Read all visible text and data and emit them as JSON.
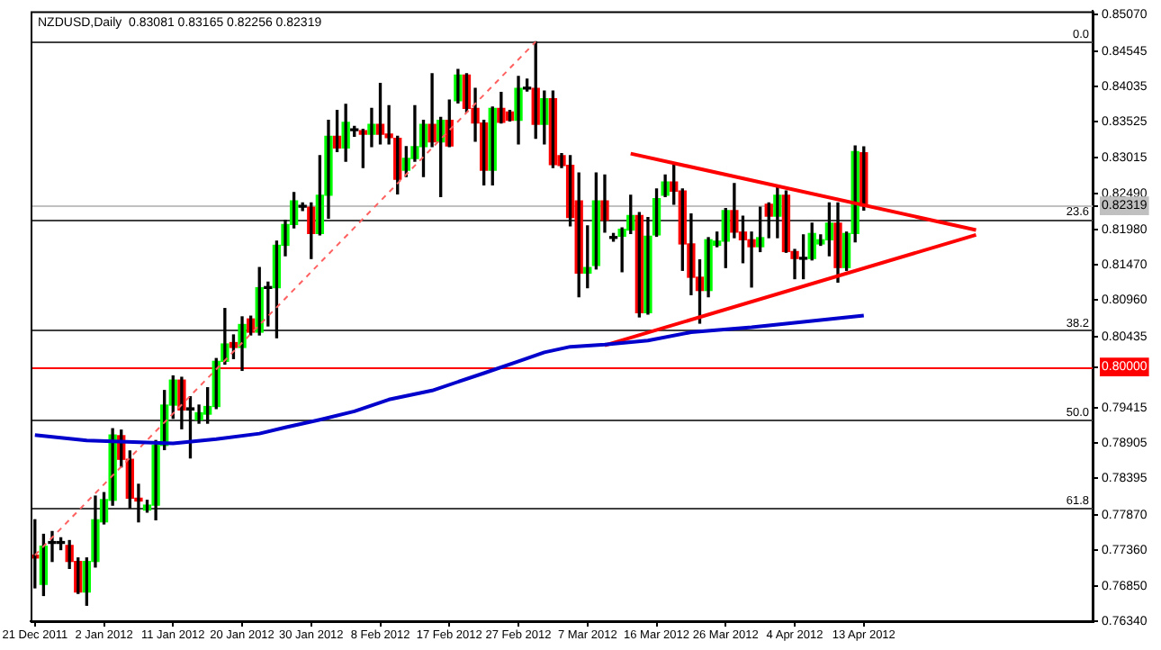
{
  "chart_data": {
    "type": "candlestick",
    "title": "NZDUSD,Daily  0.83081 0.83165 0.82256 0.82319",
    "categories": [
      "21 Dec 2011",
      null,
      null,
      null,
      null,
      null,
      null,
      null,
      "2 Jan 2012",
      null,
      null,
      null,
      null,
      null,
      null,
      null,
      "11 Jan 2012",
      null,
      null,
      null,
      null,
      null,
      null,
      null,
      "20 Jan 2012",
      null,
      null,
      null,
      null,
      null,
      null,
      null,
      "30 Jan 2012",
      null,
      null,
      null,
      null,
      null,
      null,
      null,
      "8 Feb 2012",
      null,
      null,
      null,
      null,
      null,
      null,
      null,
      "17 Feb 2012",
      null,
      null,
      null,
      null,
      null,
      null,
      null,
      "27 Feb 2012",
      null,
      null,
      null,
      null,
      null,
      null,
      null,
      "7 Mar 2012",
      null,
      null,
      null,
      null,
      null,
      null,
      null,
      "16 Mar 2012",
      null,
      null,
      null,
      null,
      null,
      null,
      null,
      "26 Mar 2012",
      null,
      null,
      null,
      null,
      null,
      null,
      null,
      "4 Apr 2012",
      null,
      null,
      null,
      null,
      null,
      null,
      null,
      "13 Apr 2012",
      null,
      null,
      null,
      null,
      null,
      null,
      null,
      null,
      null,
      null,
      null,
      null,
      null,
      null,
      null,
      null,
      null,
      null,
      null,
      null,
      null,
      null,
      null,
      null,
      null,
      null
    ],
    "ohlc": [
      [
        0.7729,
        0.778,
        0.7682,
        0.7725
      ],
      [
        0.7687,
        0.7759,
        0.7671,
        0.7742
      ],
      [
        0.7746,
        0.7763,
        0.772,
        0.7748
      ],
      [
        0.7746,
        0.7754,
        0.7737,
        0.7746
      ],
      [
        0.7743,
        0.775,
        0.771,
        0.772
      ],
      [
        0.772,
        0.7725,
        0.7674,
        0.7676
      ],
      [
        0.7676,
        0.7725,
        0.7657,
        0.772
      ],
      [
        0.772,
        0.7814,
        0.7712,
        0.778
      ],
      [
        0.7777,
        0.7819,
        0.7774,
        0.7809
      ],
      [
        0.7808,
        0.7911,
        0.7801,
        0.7902
      ],
      [
        0.7901,
        0.7909,
        0.7856,
        0.7867
      ],
      [
        0.7867,
        0.7879,
        0.7797,
        0.7811
      ],
      [
        0.7811,
        0.7831,
        0.7777,
        0.7807
      ],
      [
        0.7794,
        0.7808,
        0.7791,
        0.7801
      ],
      [
        0.7801,
        0.7894,
        0.778,
        0.7887
      ],
      [
        0.7887,
        0.7966,
        0.7881,
        0.7945
      ],
      [
        0.7945,
        0.7987,
        0.7926,
        0.7981
      ],
      [
        0.7981,
        0.7985,
        0.7911,
        0.7938
      ],
      [
        0.7941,
        0.7957,
        0.7869,
        0.7938
      ],
      [
        0.7924,
        0.7945,
        0.7919,
        0.7934
      ],
      [
        0.7932,
        0.797,
        0.7919,
        0.7943
      ],
      [
        0.7943,
        0.8012,
        0.794,
        0.8008
      ],
      [
        0.8008,
        0.8084,
        0.8004,
        0.8033
      ],
      [
        0.8035,
        0.8046,
        0.8012,
        0.8028
      ],
      [
        0.8028,
        0.8072,
        0.7995,
        0.8061
      ],
      [
        0.8069,
        0.8073,
        0.8046,
        0.805
      ],
      [
        0.805,
        0.8143,
        0.8046,
        0.8114
      ],
      [
        0.8114,
        0.8122,
        0.8059,
        0.8113
      ],
      [
        0.8114,
        0.8181,
        0.8042,
        0.8175
      ],
      [
        0.8175,
        0.8211,
        0.816,
        0.8205
      ],
      [
        0.8205,
        0.8251,
        0.82,
        0.8239
      ],
      [
        0.823,
        0.8236,
        0.8225,
        0.823
      ],
      [
        0.823,
        0.8236,
        0.8156,
        0.8192
      ],
      [
        0.8192,
        0.8304,
        0.819,
        0.8247
      ],
      [
        0.8247,
        0.8355,
        0.8214,
        0.8332
      ],
      [
        0.8332,
        0.8369,
        0.831,
        0.8315
      ],
      [
        0.8315,
        0.8378,
        0.8296,
        0.8352
      ],
      [
        0.834,
        0.8346,
        0.8332,
        0.834
      ],
      [
        0.834,
        0.8342,
        0.8287,
        0.8335
      ],
      [
        0.8335,
        0.8372,
        0.8317,
        0.8349
      ],
      [
        0.8349,
        0.8408,
        0.8321,
        0.8335
      ],
      [
        0.8335,
        0.8376,
        0.8321,
        0.833
      ],
      [
        0.8329,
        0.8332,
        0.8249,
        0.827
      ],
      [
        0.8283,
        0.8317,
        0.8274,
        0.83
      ],
      [
        0.83,
        0.8376,
        0.8296,
        0.8317
      ],
      [
        0.8317,
        0.8355,
        0.8274,
        0.8349
      ],
      [
        0.8349,
        0.8422,
        0.8317,
        0.8324
      ],
      [
        0.8324,
        0.8359,
        0.8245,
        0.8355
      ],
      [
        0.8355,
        0.8384,
        0.8317,
        0.8318
      ],
      [
        0.8383,
        0.8428,
        0.838,
        0.842
      ],
      [
        0.842,
        0.8422,
        0.8367,
        0.8372
      ],
      [
        0.8372,
        0.8401,
        0.8325,
        0.8351
      ],
      [
        0.8351,
        0.8355,
        0.8262,
        0.8283
      ],
      [
        0.8283,
        0.8374,
        0.8262,
        0.8372
      ],
      [
        0.8372,
        0.8395,
        0.8351,
        0.8352
      ],
      [
        0.8367,
        0.8369,
        0.8354,
        0.8355
      ],
      [
        0.8355,
        0.8418,
        0.8321,
        0.8401
      ],
      [
        0.8401,
        0.8414,
        0.8397,
        0.84
      ],
      [
        0.8401,
        0.8468,
        0.8329,
        0.8349
      ],
      [
        0.8349,
        0.8397,
        0.8321,
        0.8386
      ],
      [
        0.8386,
        0.8397,
        0.8287,
        0.8291
      ],
      [
        0.8304,
        0.8307,
        0.8287,
        0.829
      ],
      [
        0.829,
        0.8304,
        0.8203,
        0.8215
      ],
      [
        0.8239,
        0.8279,
        0.8101,
        0.8135
      ],
      [
        0.8135,
        0.8203,
        0.8114,
        0.8143
      ],
      [
        0.8146,
        0.8279,
        0.8141,
        0.8239
      ],
      [
        0.8239,
        0.8276,
        0.8194,
        0.8211
      ],
      [
        0.8187,
        0.8192,
        0.8181,
        0.8185
      ],
      [
        0.8188,
        0.82,
        0.8137,
        0.8198
      ],
      [
        0.8197,
        0.8247,
        0.8192,
        0.8218
      ],
      [
        0.8218,
        0.8222,
        0.8072,
        0.8078
      ],
      [
        0.8078,
        0.8215,
        0.8076,
        0.8188
      ],
      [
        0.819,
        0.8256,
        0.8188,
        0.8242
      ],
      [
        0.8247,
        0.8276,
        0.8245,
        0.8266
      ],
      [
        0.8266,
        0.8291,
        0.8234,
        0.8253
      ],
      [
        0.8253,
        0.8256,
        0.8139,
        0.8177
      ],
      [
        0.8177,
        0.822,
        0.8104,
        0.8129
      ],
      [
        0.8129,
        0.8154,
        0.8063,
        0.811
      ],
      [
        0.811,
        0.8186,
        0.8101,
        0.8183
      ],
      [
        0.8175,
        0.8194,
        0.8173,
        0.8181
      ],
      [
        0.8181,
        0.8228,
        0.8143,
        0.8225
      ],
      [
        0.8225,
        0.8264,
        0.8186,
        0.8194
      ],
      [
        0.8194,
        0.8217,
        0.815,
        0.8183
      ],
      [
        0.8183,
        0.8194,
        0.8115,
        0.8173
      ],
      [
        0.8173,
        0.823,
        0.8166,
        0.8186
      ],
      [
        0.8234,
        0.8236,
        0.8186,
        0.8217
      ],
      [
        0.8217,
        0.8258,
        0.8186,
        0.8247
      ],
      [
        0.8247,
        0.8253,
        0.8165,
        0.8166
      ],
      [
        0.8166,
        0.8169,
        0.8127,
        0.8156
      ],
      [
        0.8157,
        0.819,
        0.8127,
        0.8155
      ],
      [
        0.8156,
        0.8207,
        0.8154,
        0.8192
      ],
      [
        0.8177,
        0.819,
        0.8175,
        0.8183
      ],
      [
        0.8183,
        0.8236,
        0.816,
        0.8207
      ],
      [
        0.8207,
        0.8236,
        0.8122,
        0.8143
      ],
      [
        0.8143,
        0.8194,
        0.8139,
        0.8192
      ],
      [
        0.8192,
        0.8318,
        0.818,
        0.831
      ],
      [
        0.83081,
        0.83165,
        0.82256,
        0.82319
      ],
      null,
      null,
      null,
      null,
      null,
      null,
      null,
      null,
      null,
      null,
      null,
      null,
      null,
      null,
      null,
      null,
      null,
      null,
      null,
      null,
      null,
      null,
      null,
      null,
      null,
      null
    ],
    "colors": [
      "#ff0000",
      "#00ff00",
      "#000000",
      "#000000",
      "#ff0000",
      "#ff0000",
      "#00ff00",
      "#00ff00",
      "#00ff00",
      "#00ff00",
      "#ff0000",
      "#ff0000",
      "#ff0000",
      "#00ff00",
      "#00ff00",
      "#00ff00",
      "#00ff00",
      "#ff0000",
      "#000000",
      "#00ff00",
      "#00ff00",
      "#00ff00",
      "#00ff00",
      "#ff0000",
      "#00ff00",
      "#ff0000",
      "#00ff00",
      "#000000",
      "#00ff00",
      "#00ff00",
      "#00ff00",
      "#000000",
      "#ff0000",
      "#00ff00",
      "#00ff00",
      "#ff0000",
      "#00ff00",
      "#000000",
      "#ff0000",
      "#00ff00",
      "#ff0000",
      "#ff0000",
      "#ff0000",
      "#00ff00",
      "#00ff00",
      "#00ff00",
      "#ff0000",
      "#00ff00",
      "#ff0000",
      "#00ff00",
      "#ff0000",
      "#ff0000",
      "#ff0000",
      "#00ff00",
      "#ff0000",
      "#ff0000",
      "#00ff00",
      "#000000",
      "#ff0000",
      "#00ff00",
      "#ff0000",
      "#ff0000",
      "#ff0000",
      "#ff0000",
      "#00ff00",
      "#00ff00",
      "#ff0000",
      "#000000",
      "#00ff00",
      "#00ff00",
      "#ff0000",
      "#00ff00",
      "#00ff00",
      "#00ff00",
      "#ff0000",
      "#ff0000",
      "#ff0000",
      "#ff0000",
      "#00ff00",
      "#00ff00",
      "#00ff00",
      "#ff0000",
      "#ff0000",
      "#ff0000",
      "#00ff00",
      "#ff0000",
      "#00ff00",
      "#ff0000",
      "#ff0000",
      "#000000",
      "#00ff00",
      "#00ff00",
      "#00ff00",
      "#ff0000",
      "#00ff00",
      "#00ff00",
      "#ff0000",
      null,
      null,
      null,
      null,
      null,
      null,
      null,
      null,
      null,
      null,
      null,
      null,
      null,
      null,
      null,
      null,
      null,
      null,
      null,
      null,
      null,
      null,
      null,
      null,
      null,
      null
    ],
    "series": [
      {
        "type": "line",
        "color": "#0000cc",
        "line_style": "solid",
        "values": [
          0.7902,
          null,
          null,
          null,
          null,
          null,
          0.7894,
          null,
          null,
          null,
          null,
          null,
          null,
          null,
          null,
          null,
          0.789,
          null,
          null,
          null,
          null,
          0.7896,
          null,
          null,
          null,
          null,
          0.7904,
          null,
          null,
          0.7913,
          null,
          null,
          null,
          0.7924,
          null,
          null,
          null,
          0.7936,
          null,
          null,
          null,
          0.7953,
          null,
          null,
          null,
          null,
          0.7966,
          null,
          null,
          null,
          null,
          null,
          0.7991,
          null,
          null,
          null,
          0.8008,
          null,
          null,
          0.8021,
          null,
          null,
          0.8029,
          null,
          null,
          null,
          0.8032,
          null,
          null,
          null,
          null,
          0.8038,
          null,
          null,
          null,
          null,
          0.805,
          null,
          null,
          null,
          null,
          null,
          null,
          0.8057,
          null,
          null,
          null,
          null,
          null,
          null,
          null,
          null,
          null,
          null,
          null,
          null,
          0.8074,
          null,
          null,
          null,
          null,
          null,
          null,
          null,
          null,
          null,
          null,
          null,
          null,
          null,
          null,
          null,
          null,
          null,
          null,
          null,
          null,
          null,
          null,
          null,
          null,
          null,
          null
        ]
      },
      {
        "type": "line",
        "color": "#ff0000",
        "line_style": "solid",
        "values": [
          null,
          null,
          null,
          null,
          null,
          null,
          null,
          null,
          null,
          null,
          null,
          null,
          null,
          null,
          null,
          null,
          null,
          null,
          null,
          null,
          null,
          null,
          null,
          null,
          null,
          null,
          null,
          null,
          null,
          null,
          null,
          null,
          null,
          null,
          null,
          null,
          null,
          null,
          null,
          null,
          null,
          null,
          null,
          null,
          null,
          null,
          null,
          null,
          null,
          null,
          null,
          null,
          null,
          null,
          null,
          null,
          null,
          null,
          null,
          null,
          null,
          null,
          null,
          null,
          null,
          null,
          null,
          null,
          null,
          0.8307,
          null,
          null,
          null,
          null,
          null,
          null,
          null,
          null,
          null,
          null,
          null,
          null,
          null,
          null,
          null,
          null,
          null,
          null,
          null,
          null,
          null,
          null,
          null,
          null,
          null,
          null,
          null,
          null,
          null,
          null,
          null,
          null,
          null,
          null,
          null,
          null,
          null,
          null,
          null,
          0.8197,
          null,
          null,
          null,
          null,
          null,
          null,
          null,
          null,
          null,
          null,
          null,
          null,
          null
        ]
      },
      {
        "type": "line",
        "color": "#ff0000",
        "line_style": "solid",
        "values": [
          null,
          null,
          null,
          null,
          null,
          null,
          null,
          null,
          null,
          null,
          null,
          null,
          null,
          null,
          null,
          null,
          null,
          null,
          null,
          null,
          null,
          null,
          null,
          null,
          null,
          null,
          null,
          null,
          null,
          null,
          null,
          null,
          null,
          null,
          null,
          null,
          null,
          null,
          null,
          null,
          null,
          null,
          null,
          null,
          null,
          null,
          null,
          null,
          null,
          null,
          null,
          null,
          null,
          null,
          null,
          null,
          null,
          null,
          null,
          null,
          null,
          null,
          null,
          null,
          null,
          null,
          0.8031,
          null,
          null,
          null,
          null,
          null,
          null,
          null,
          null,
          null,
          null,
          null,
          null,
          null,
          null,
          null,
          null,
          null,
          null,
          null,
          null,
          null,
          null,
          null,
          null,
          null,
          null,
          null,
          null,
          null,
          null,
          null,
          null,
          null,
          null,
          null,
          null,
          null,
          null,
          null,
          null,
          null,
          null,
          0.819,
          null,
          null,
          null,
          null,
          null,
          null,
          null,
          null,
          null,
          null,
          null,
          null,
          null
        ]
      },
      {
        "type": "line",
        "color": "#ff6060",
        "line_style": "dashed",
        "values": [
          0.7729,
          null,
          null,
          null,
          null,
          null,
          null,
          null,
          null,
          null,
          null,
          null,
          null,
          null,
          null,
          null,
          null,
          null,
          null,
          null,
          null,
          null,
          null,
          null,
          null,
          null,
          null,
          null,
          null,
          null,
          null,
          null,
          null,
          null,
          null,
          null,
          null,
          null,
          null,
          null,
          null,
          null,
          null,
          null,
          null,
          null,
          null,
          null,
          null,
          null,
          null,
          null,
          null,
          null,
          null,
          null,
          null,
          null,
          0.8468,
          null,
          null,
          null,
          null,
          null,
          null,
          null,
          null,
          null,
          null,
          null,
          null,
          null,
          null,
          null,
          null,
          null,
          null,
          null,
          null,
          null,
          null,
          null,
          null,
          null,
          null,
          null,
          null,
          null,
          null,
          null,
          null,
          null,
          null,
          null,
          null,
          null,
          null,
          null,
          null,
          null,
          null,
          null,
          null,
          null,
          null,
          null,
          null,
          null,
          null,
          null,
          null,
          null,
          null,
          null,
          null,
          null,
          null,
          null,
          null,
          null,
          null,
          null,
          null
        ]
      }
    ],
    "ylim": [
      0.7634,
      0.8512
    ],
    "yticks": [
      {
        "value": 0.8507,
        "label": "0.85070"
      },
      {
        "value": 0.84545,
        "label": "0.84545"
      },
      {
        "value": 0.84035,
        "label": "0.84035"
      },
      {
        "value": 0.83525,
        "label": "0.83525"
      },
      {
        "value": 0.83015,
        "label": "0.83015"
      },
      {
        "value": 0.8249,
        "label": "0.82490"
      },
      {
        "value": 0.82319,
        "label": "0.82319"
      },
      {
        "value": 0.8198,
        "label": "0.81980"
      },
      {
        "value": 0.8147,
        "label": "0.81470"
      },
      {
        "value": 0.8096,
        "label": "0.80960"
      },
      {
        "value": 0.80435,
        "label": "0.80435"
      },
      {
        "value": 0.8,
        "label": "0.80000"
      },
      {
        "value": 0.79415,
        "label": "0.79415"
      },
      {
        "value": 0.78905,
        "label": "0.78905"
      },
      {
        "value": 0.78395,
        "label": "0.78395"
      },
      {
        "value": 0.7787,
        "label": "0.77870"
      },
      {
        "value": 0.7736,
        "label": "0.77360"
      },
      {
        "value": 0.7685,
        "label": "0.76850"
      },
      {
        "value": 0.7634,
        "label": "0.76340"
      }
    ],
    "annotations": [
      {
        "text": "0.0",
        "y": 0.8468
      },
      {
        "text": "23.6",
        "y": 0.8213
      },
      {
        "text": "38.2",
        "y": 0.8053
      },
      {
        "text": "50.0",
        "y": 0.7924
      },
      {
        "text": "61.8",
        "y": 0.7797
      }
    ],
    "ref_lines": [
      {
        "axis": "y",
        "value": 0.8468,
        "color": "#404040"
      },
      {
        "axis": "y",
        "value": 0.8213,
        "color": "#404040"
      },
      {
        "axis": "y",
        "value": 0.8053,
        "color": "#404040"
      },
      {
        "axis": "y",
        "value": 0.7924,
        "color": "#404040"
      },
      {
        "axis": "y",
        "value": 0.7797,
        "color": "#404040"
      },
      {
        "axis": "y",
        "value": 0.8,
        "color": "#ff0000"
      },
      {
        "axis": "y",
        "value": 0.82319,
        "color": "#c0c0c0"
      }
    ],
    "marker": "none",
    "grid": false,
    "legend": false
  }
}
